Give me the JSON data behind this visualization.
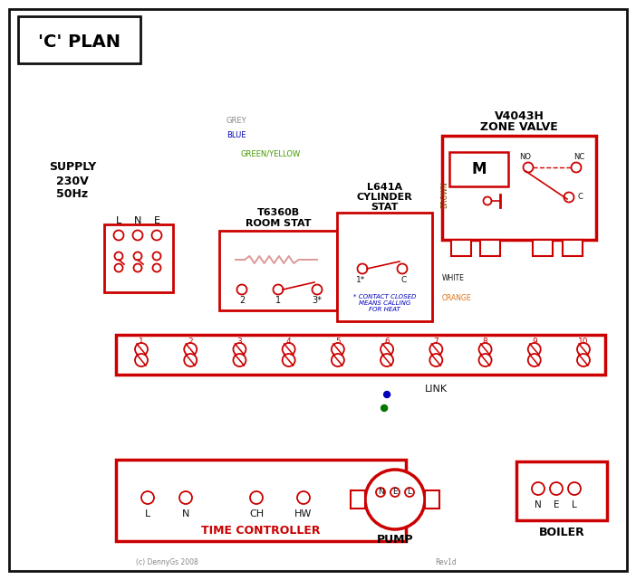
{
  "title": "'C' PLAN",
  "bg": "#ffffff",
  "red": "#cc0000",
  "blue": "#0000bb",
  "green": "#007700",
  "grey": "#888888",
  "brown": "#7B3F00",
  "orange": "#E07010",
  "black": "#111111",
  "green_yellow": "#449900",
  "pink": "#dd9999",
  "supply_lines": [
    "SUPPLY",
    "230V",
    "50Hz"
  ],
  "zone_valve_title1": "V4043H",
  "zone_valve_title2": "ZONE VALVE",
  "room_stat_title1": "T6360B",
  "room_stat_title2": "ROOM STAT",
  "cyl_stat_title1": "L641A",
  "cyl_stat_title2": "CYLINDER",
  "cyl_stat_title3": "STAT",
  "time_ctrl_label": "TIME CONTROLLER",
  "pump_label": "PUMP",
  "boiler_label": "BOILER",
  "link_label": "LINK",
  "wire_grey": "GREY",
  "wire_blue": "BLUE",
  "wire_gy": "GREEN/YELLOW",
  "wire_brown": "BROWN",
  "wire_white": "WHITE",
  "wire_orange": "ORANGE",
  "contact_note": "* CONTACT CLOSED\nMEANS CALLING\nFOR HEAT",
  "copyright": "(c) DennyGs 2008",
  "rev": "Rev1d"
}
